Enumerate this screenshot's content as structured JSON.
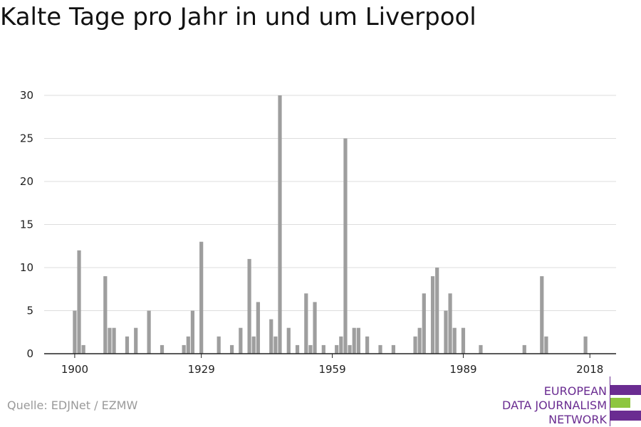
{
  "header": {
    "title": "Kalte Tage pro Jahr in und um Liverpool"
  },
  "footer": {
    "source": "Quelle: EDJNet / EZMW",
    "logo_lines": [
      "EUROPEAN",
      "DATA JOURNALISM",
      "NETWORK"
    ]
  },
  "colors": {
    "bar": "#9e9e9e",
    "grid": "#dddddd",
    "axis": "#222222",
    "logo_purple": "#6a2c91",
    "logo_green": "#8dc63f"
  },
  "chart_data": {
    "type": "bar",
    "title": "Kalte Tage pro Jahr in und um Liverpool",
    "xlabel": "",
    "ylabel": "",
    "xlim": [
      1893,
      2024
    ],
    "ylim": [
      0,
      30
    ],
    "y_ticks": [
      0,
      5,
      10,
      15,
      20,
      25,
      30
    ],
    "x_ticks": [
      1900,
      1929,
      1959,
      1989,
      2018
    ],
    "grid": true,
    "x": [
      1900,
      1901,
      1902,
      1907,
      1908,
      1909,
      1912,
      1914,
      1917,
      1920,
      1925,
      1926,
      1927,
      1929,
      1933,
      1936,
      1938,
      1940,
      1941,
      1942,
      1945,
      1946,
      1947,
      1949,
      1951,
      1953,
      1954,
      1955,
      1957,
      1960,
      1961,
      1962,
      1963,
      1964,
      1965,
      1967,
      1970,
      1973,
      1978,
      1979,
      1980,
      1982,
      1983,
      1985,
      1986,
      1987,
      1989,
      1993,
      2003,
      2007,
      2008,
      2017
    ],
    "values": [
      5,
      12,
      1,
      9,
      3,
      3,
      2,
      3,
      5,
      1,
      1,
      2,
      5,
      13,
      2,
      1,
      3,
      11,
      2,
      6,
      4,
      2,
      30,
      3,
      1,
      7,
      1,
      6,
      1,
      1,
      2,
      25,
      1,
      3,
      3,
      2,
      1,
      1,
      2,
      3,
      7,
      9,
      10,
      5,
      7,
      3,
      3,
      1,
      1,
      9,
      2,
      2
    ]
  }
}
